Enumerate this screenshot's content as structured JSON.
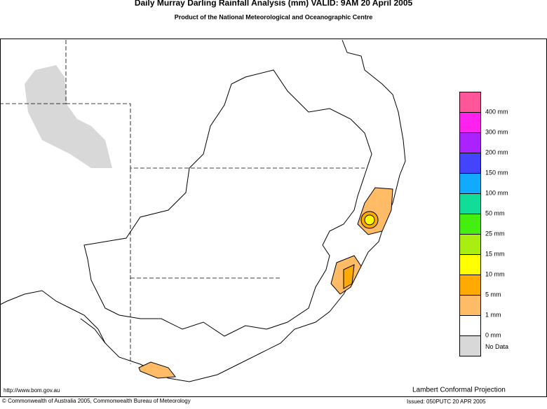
{
  "header": {
    "title": "Daily Murray Darling Rainfall Analysis (mm)  VALID: 9AM 20 April 2005",
    "subtitle": "Product of the National Meteorological and Oceanographic Centre"
  },
  "legend": [
    {
      "color": "#ff5599",
      "label": null
    },
    {
      "color": "#ff22ee",
      "label": "400 mm"
    },
    {
      "color": "#aa22ff",
      "label": "300 mm"
    },
    {
      "color": "#4444ff",
      "label": "200 mm"
    },
    {
      "color": "#11aaff",
      "label": "150 mm"
    },
    {
      "color": "#11dd99",
      "label": "100 mm"
    },
    {
      "color": "#44ee11",
      "label": "50 mm"
    },
    {
      "color": "#aaee11",
      "label": "25 mm"
    },
    {
      "color": "#ffff00",
      "label": "15 mm"
    },
    {
      "color": "#ffaa00",
      "label": "10 mm"
    },
    {
      "color": "#ffbb66",
      "label": "5 mm"
    },
    {
      "color": "#ffffff",
      "label": "1 mm"
    },
    {
      "color": "#d8d8d8",
      "label": "0 mm"
    }
  ],
  "legend_last_label": "No Data",
  "footer": {
    "url": "http://www.bom.gov.au",
    "projection": "Lambert Conformal Projection",
    "copyright": "© Commonwealth of Australia 2005, Commonwealth Bureau of Meteorology",
    "issued": "Issued: 050PUTC 20 APR 2005"
  }
}
